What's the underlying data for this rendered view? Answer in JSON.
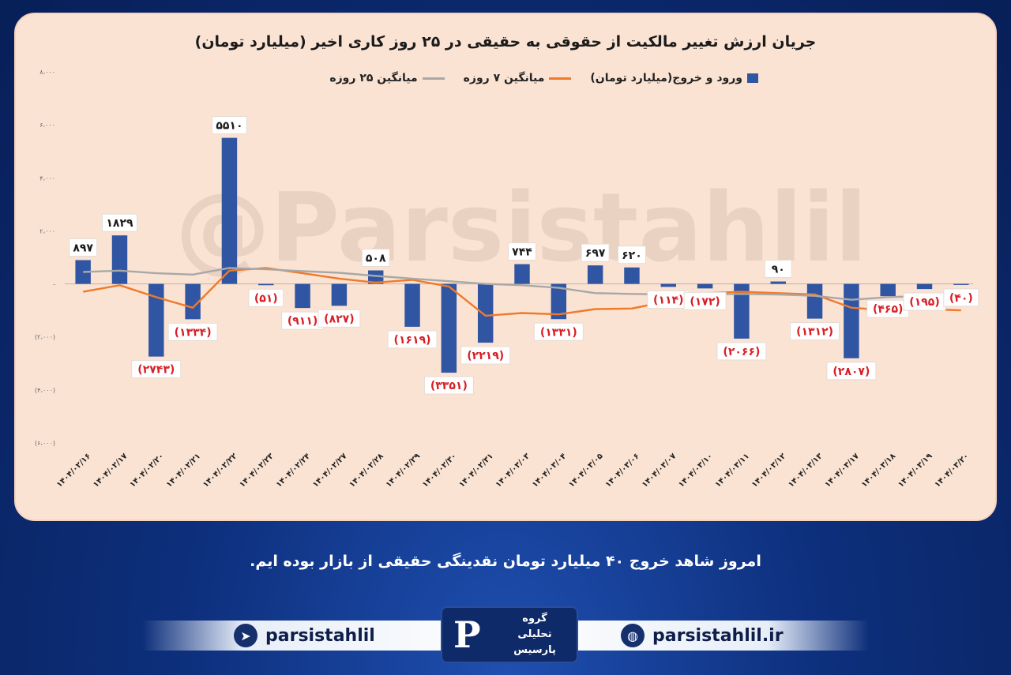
{
  "chart_data": {
    "type": "bar",
    "title": "جریان ارزش تغییر مالکیت از حقوقی به حقیقی در ۲۵ روز کاری اخیر (میلیارد تومان)",
    "watermark": "@Parsistahlil",
    "categories": [
      "۱۴۰۴/۰۲/۱۶",
      "۱۴۰۴/۰۲/۱۷",
      "۱۴۰۴/۰۲/۲۰",
      "۱۴۰۴/۰۲/۲۱",
      "۱۴۰۴/۰۲/۲۲",
      "۱۴۰۴/۰۲/۲۳",
      "۱۴۰۴/۰۲/۲۴",
      "۱۴۰۴/۰۲/۲۷",
      "۱۴۰۴/۰۲/۲۸",
      "۱۴۰۴/۰۲/۲۹",
      "۱۴۰۴/۰۲/۳۰",
      "۱۴۰۴/۰۲/۳۱",
      "۱۴۰۴/۰۳/۰۳",
      "۱۴۰۴/۰۳/۰۴",
      "۱۴۰۴/۰۳/۰۵",
      "۱۴۰۴/۰۳/۰۶",
      "۱۴۰۴/۰۳/۰۷",
      "۱۴۰۴/۰۳/۱۰",
      "۱۴۰۴/۰۳/۱۱",
      "۱۴۰۴/۰۳/۱۲",
      "۱۴۰۴/۰۳/۱۳",
      "۱۴۰۴/۰۳/۱۷",
      "۱۴۰۴/۰۳/۱۸",
      "۱۴۰۴/۰۳/۱۹",
      "۱۴۰۴/۰۳/۲۰"
    ],
    "series": [
      {
        "name": "ورود و خروج(میلیارد تومان)",
        "kind": "bar",
        "color": "#2f55a3",
        "values": [
          897,
          1829,
          -2743,
          -1334,
          5510,
          -51,
          -911,
          -827,
          508,
          -1619,
          -3351,
          -2219,
          744,
          -1331,
          697,
          620,
          -114,
          -172,
          -2066,
          90,
          -1312,
          -2807,
          -465,
          -195,
          -40
        ],
        "labels": [
          "۸۹۷",
          "۱۸۲۹",
          "(۲۷۴۳)",
          "(۱۳۳۴)",
          "۵۵۱۰",
          "(۵۱)",
          "(۹۱۱)",
          "(۸۲۷)",
          "۵۰۸",
          "(۱۶۱۹)",
          "(۳۳۵۱)",
          "(۲۲۱۹)",
          "۷۴۴",
          "(۱۳۳۱)",
          "۶۹۷",
          "۶۲۰",
          "(۱۱۴)",
          "(۱۷۲)",
          "(۲۰۶۶)",
          "۹۰",
          "(۱۳۱۲)",
          "(۲۸۰۷)",
          "(۴۶۵)",
          "(۱۹۵)",
          "(۴۰)"
        ]
      },
      {
        "name": "میانگین ۷ روزه",
        "kind": "line",
        "color": "#f07a2a",
        "values": [
          -300,
          -50,
          -500,
          -900,
          500,
          600,
          400,
          200,
          50,
          150,
          -100,
          -1200,
          -1100,
          -1150,
          -950,
          -930,
          -650,
          -350,
          -300,
          -350,
          -400,
          -900,
          -1000,
          -950,
          -1000
        ]
      },
      {
        "name": "میانگین ۲۵ روزه",
        "kind": "line",
        "color": "#a8a8a8",
        "values": [
          450,
          500,
          400,
          350,
          600,
          550,
          480,
          420,
          300,
          200,
          100,
          0,
          -50,
          -150,
          -350,
          -380,
          -400,
          -400,
          -380,
          -400,
          -450,
          -600,
          -500,
          -450,
          -420
        ]
      }
    ],
    "y_ticks": [
      "۸،۰۰۰",
      "۶،۰۰۰",
      "۴،۰۰۰",
      "۲،۰۰۰",
      "-",
      "(۲،۰۰۰)",
      "(۴،۰۰۰)",
      "(۶،۰۰۰)"
    ],
    "ylim": [
      -6000,
      8000
    ],
    "grid": false,
    "legend_position": "top"
  },
  "caption": "امروز شاهد خروج ۴۰ میلیارد تومان نقدینگی حقیقی از بازار بوده ایم.",
  "footer": {
    "telegram_handle": "parsistahlil",
    "website": "parsistahlil.ir",
    "logo_text": [
      "گروه",
      "تحلیلی",
      "پارسیس"
    ]
  }
}
